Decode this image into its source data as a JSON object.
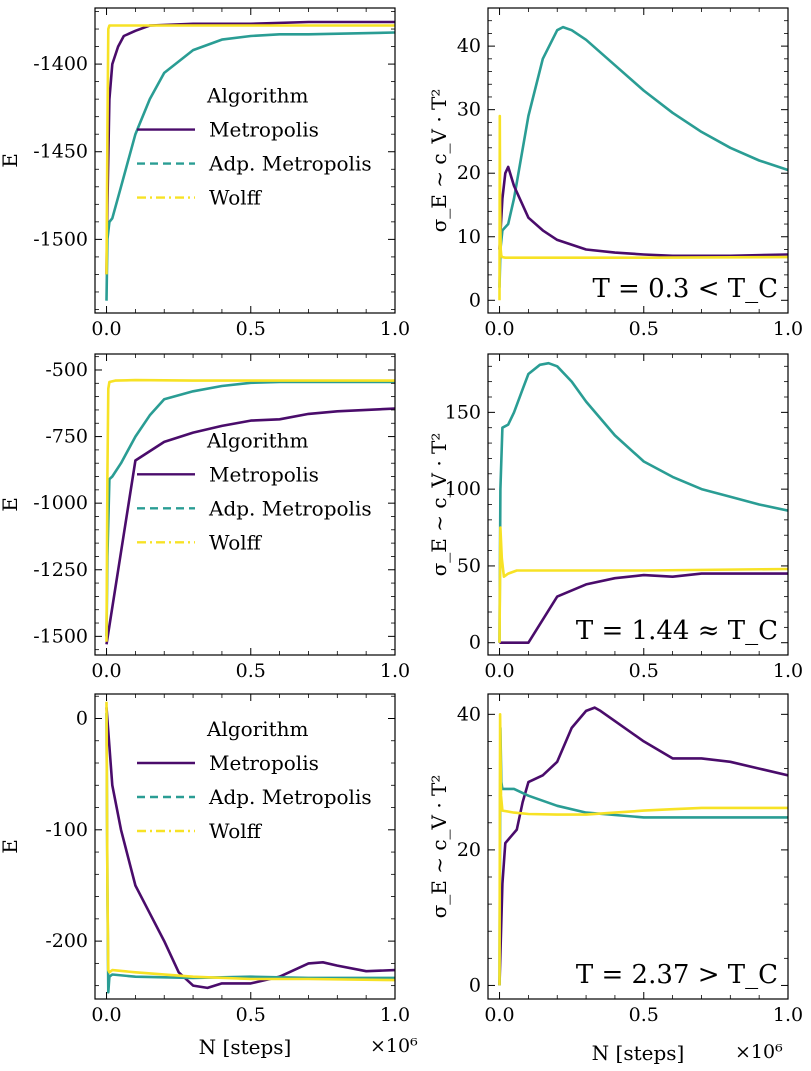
{
  "figure": {
    "xlabel": "N [steps]",
    "x_multiplier": "×10⁶",
    "colors": {
      "metropolis": "#4a0c6b",
      "adp_metropolis": "#2a9d94",
      "wolff": "#f7e225"
    }
  },
  "chart_data": [
    {
      "id": "r1c1",
      "type": "line",
      "title": "",
      "xlabel": "",
      "ylabel": "E",
      "xlim": [
        -0.04,
        1.0
      ],
      "ylim": [
        -1542,
        -1368
      ],
      "xticks": [
        0.0,
        0.5,
        1.0
      ],
      "xtick_labels": [
        "0.0",
        "0.5",
        "1.0"
      ],
      "yticks": [
        -1400,
        -1450,
        -1500
      ],
      "ytick_labels": [
        "-1400",
        "-1450",
        "-1500"
      ],
      "legend": {
        "title": "Algorithm",
        "placement": "center-right",
        "entries": [
          "Metropolis",
          "Adp. Metropolis",
          "Wolff"
        ]
      },
      "series": [
        {
          "name": "Metropolis",
          "style": "solid",
          "color": "#4a0c6b",
          "x": [
            0,
            0.003,
            0.01,
            0.02,
            0.04,
            0.06,
            0.1,
            0.15,
            0.3,
            0.5,
            0.7,
            1.0
          ],
          "y": [
            -1520,
            -1480,
            -1420,
            -1400,
            -1390,
            -1384,
            -1381,
            -1378,
            -1377,
            -1377,
            -1376,
            -1376
          ]
        },
        {
          "name": "Adp. Metropolis",
          "style": "dashed",
          "color": "#2a9d94",
          "x": [
            0,
            0.003,
            0.01,
            0.02,
            0.05,
            0.1,
            0.15,
            0.2,
            0.3,
            0.4,
            0.5,
            0.6,
            0.7,
            1.0
          ],
          "y": [
            -1535,
            -1500,
            -1490,
            -1488,
            -1470,
            -1440,
            -1420,
            -1405,
            -1392,
            -1386,
            -1384,
            -1383,
            -1383,
            -1382
          ]
        },
        {
          "name": "Wolff",
          "style": "dashdot",
          "color": "#f7e225",
          "x": [
            0,
            0.003,
            0.006,
            0.01,
            0.02,
            0.05,
            0.1,
            0.3,
            0.5,
            1.0
          ],
          "y": [
            -1520,
            -1440,
            -1380,
            -1378,
            -1378,
            -1378,
            -1378,
            -1378,
            -1378,
            -1378
          ]
        }
      ]
    },
    {
      "id": "r1c2",
      "type": "line",
      "title": "",
      "xlabel": "",
      "ylabel": "σ_E ~ c_V · T²",
      "xlim": [
        -0.04,
        1.0
      ],
      "ylim": [
        -2,
        46
      ],
      "xticks": [
        0.0,
        0.5,
        1.0
      ],
      "xtick_labels": [
        "0.0",
        "0.5",
        "1.0"
      ],
      "yticks": [
        0,
        10,
        20,
        30,
        40
      ],
      "ytick_labels": [
        "0",
        "10",
        "20",
        "30",
        "40"
      ],
      "annotation": "T = 0.3 < T_C",
      "series": [
        {
          "name": "Adp. Metropolis",
          "style": "solid",
          "color": "#2a9d94",
          "x": [
            0,
            0.003,
            0.01,
            0.03,
            0.05,
            0.1,
            0.15,
            0.2,
            0.22,
            0.25,
            0.3,
            0.4,
            0.5,
            0.6,
            0.7,
            0.8,
            0.9,
            1.0
          ],
          "y": [
            2,
            8,
            11,
            12,
            16,
            29,
            38,
            42.5,
            43,
            42.5,
            41,
            37,
            33,
            29.5,
            26.5,
            24,
            22,
            20.5
          ]
        },
        {
          "name": "Metropolis",
          "style": "solid",
          "color": "#4a0c6b",
          "x": [
            0,
            0.01,
            0.02,
            0.03,
            0.05,
            0.1,
            0.15,
            0.2,
            0.3,
            0.4,
            0.5,
            0.6,
            0.7,
            0.8,
            1.0
          ],
          "y": [
            8,
            16,
            20,
            21,
            18,
            13,
            11,
            9.5,
            8,
            7.5,
            7.2,
            7,
            7,
            7,
            7.2
          ]
        },
        {
          "name": "Wolff",
          "style": "solid",
          "color": "#f7e225",
          "x": [
            0,
            0.001,
            0.002,
            0.004,
            0.006,
            0.01,
            0.02,
            0.05,
            0.2,
            0.5,
            1.0
          ],
          "y": [
            0,
            29,
            15,
            8,
            7,
            6.8,
            6.7,
            6.7,
            6.7,
            6.7,
            6.8
          ]
        }
      ]
    },
    {
      "id": "r2c1",
      "type": "line",
      "title": "",
      "xlabel": "",
      "ylabel": "E",
      "xlim": [
        -0.04,
        1.0
      ],
      "ylim": [
        -1570,
        -440
      ],
      "xticks": [
        0.0,
        0.5,
        1.0
      ],
      "xtick_labels": [
        "0.0",
        "0.5",
        "1.0"
      ],
      "yticks": [
        -500,
        -750,
        -1000,
        -1250,
        -1500
      ],
      "ytick_labels": [
        "-500",
        "-750",
        "-1000",
        "-1250",
        "-1500"
      ],
      "legend": {
        "title": "Algorithm",
        "placement": "center-right",
        "entries": [
          "Metropolis",
          "Adp. Metropolis",
          "Wolff"
        ]
      },
      "series": [
        {
          "name": "Metropolis",
          "style": "solid",
          "color": "#4a0c6b",
          "x": [
            0,
            0.1,
            0.2,
            0.3,
            0.4,
            0.5,
            0.6,
            0.7,
            0.8,
            0.9,
            1.0
          ],
          "y": [
            -1530,
            -840,
            -770,
            -735,
            -710,
            -690,
            -685,
            -665,
            -655,
            -650,
            -645
          ]
        },
        {
          "name": "Adp. Metropolis",
          "style": "solid",
          "color": "#2a9d94",
          "x": [
            0,
            0.003,
            0.01,
            0.02,
            0.05,
            0.1,
            0.15,
            0.2,
            0.3,
            0.4,
            0.5,
            0.6,
            0.7,
            0.8,
            1.0
          ],
          "y": [
            -1500,
            -1200,
            -910,
            -900,
            -850,
            -750,
            -670,
            -610,
            -580,
            -560,
            -548,
            -545,
            -545,
            -545,
            -545
          ]
        },
        {
          "name": "Wolff",
          "style": "solid",
          "color": "#f7e225",
          "x": [
            0,
            0.003,
            0.006,
            0.01,
            0.03,
            0.1,
            0.3,
            0.5,
            1.0
          ],
          "y": [
            -1520,
            -900,
            -570,
            -545,
            -540,
            -538,
            -540,
            -540,
            -540
          ]
        }
      ]
    },
    {
      "id": "r2c2",
      "type": "line",
      "title": "",
      "xlabel": "",
      "ylabel": "σ_E ~ c_V · T²",
      "xlim": [
        -0.04,
        1.0
      ],
      "ylim": [
        -8,
        188
      ],
      "xticks": [
        0.0,
        0.5,
        1.0
      ],
      "xtick_labels": [
        "0.0",
        "0.5",
        "1.0"
      ],
      "yticks": [
        0,
        50,
        100,
        150
      ],
      "ytick_labels": [
        "0",
        "50",
        "100",
        "150"
      ],
      "annotation": "T = 1.44 ≈ T_C",
      "series": [
        {
          "name": "Adp. Metropolis",
          "style": "solid",
          "color": "#2a9d94",
          "x": [
            0,
            0.003,
            0.01,
            0.03,
            0.05,
            0.08,
            0.1,
            0.14,
            0.17,
            0.2,
            0.25,
            0.3,
            0.4,
            0.5,
            0.6,
            0.7,
            0.8,
            0.9,
            1.0
          ],
          "y": [
            0,
            100,
            140,
            142,
            150,
            165,
            175,
            181,
            182,
            180,
            170,
            157,
            135,
            118,
            108,
            100,
            95,
            90,
            86
          ]
        },
        {
          "name": "Metropolis",
          "style": "solid",
          "color": "#4a0c6b",
          "x": [
            0,
            0.1,
            0.2,
            0.3,
            0.4,
            0.5,
            0.6,
            0.7,
            0.8,
            1.0
          ],
          "y": [
            0,
            0,
            30,
            38,
            42,
            44,
            43,
            45,
            45,
            45
          ]
        },
        {
          "name": "Wolff",
          "style": "solid",
          "color": "#f7e225",
          "x": [
            0,
            0.003,
            0.008,
            0.015,
            0.03,
            0.06,
            0.1,
            0.3,
            0.5,
            1.0
          ],
          "y": [
            0,
            75,
            55,
            43,
            45,
            47,
            47,
            47,
            47,
            48
          ]
        }
      ]
    },
    {
      "id": "r3c1",
      "type": "line",
      "title": "",
      "xlabel": "N [steps]",
      "ylabel": "E",
      "xlim": [
        -0.04,
        1.0
      ],
      "ylim": [
        -252,
        22
      ],
      "xticks": [
        0.0,
        0.5,
        1.0
      ],
      "xtick_labels": [
        "0.0",
        "0.5",
        "1.0"
      ],
      "yticks": [
        0,
        -100,
        -200
      ],
      "ytick_labels": [
        "0",
        "-100",
        "-200"
      ],
      "legend": {
        "title": "Algorithm",
        "placement": "top-right",
        "entries": [
          "Metropolis",
          "Adp. Metropolis",
          "Wolff"
        ]
      },
      "series": [
        {
          "name": "Metropolis",
          "style": "solid",
          "color": "#4a0c6b",
          "x": [
            0,
            0.02,
            0.05,
            0.1,
            0.15,
            0.2,
            0.25,
            0.3,
            0.35,
            0.4,
            0.5,
            0.6,
            0.7,
            0.75,
            0.8,
            0.9,
            1.0
          ],
          "y": [
            10,
            -60,
            -100,
            -150,
            -175,
            -200,
            -228,
            -240,
            -242,
            -238,
            -238,
            -232,
            -220,
            -219,
            -222,
            -227,
            -226
          ]
        },
        {
          "name": "Adp. Metropolis",
          "style": "dashed",
          "color": "#2a9d94",
          "x": [
            0,
            0.003,
            0.006,
            0.01,
            0.02,
            0.1,
            0.3,
            0.5,
            0.7,
            1.0
          ],
          "y": [
            5,
            -150,
            -246,
            -232,
            -230,
            -232,
            -233,
            -232,
            -233,
            -233
          ]
        },
        {
          "name": "Wolff",
          "style": "solid",
          "color": "#f7e225",
          "x": [
            0,
            0.003,
            0.006,
            0.01,
            0.02,
            0.1,
            0.3,
            0.5,
            0.7,
            1.0
          ],
          "y": [
            15,
            -150,
            -226,
            -228,
            -226,
            -228,
            -232,
            -234,
            -234,
            -235
          ]
        }
      ]
    },
    {
      "id": "r3c2",
      "type": "line",
      "title": "",
      "xlabel": "N [steps]",
      "ylabel": "σ_E ~ c_V · T²",
      "xlim": [
        -0.04,
        1.0
      ],
      "ylim": [
        -2,
        43
      ],
      "xticks": [
        0.0,
        0.5,
        1.0
      ],
      "xtick_labels": [
        "0.0",
        "0.5",
        "1.0"
      ],
      "yticks": [
        0,
        20,
        40
      ],
      "ytick_labels": [
        "0",
        "20",
        "40"
      ],
      "annotation": "T = 2.37 > T_C",
      "series": [
        {
          "name": "Metropolis",
          "style": "solid",
          "color": "#4a0c6b",
          "x": [
            0,
            0.01,
            0.02,
            0.04,
            0.06,
            0.08,
            0.1,
            0.15,
            0.2,
            0.25,
            0.3,
            0.33,
            0.35,
            0.4,
            0.5,
            0.6,
            0.7,
            0.8,
            0.9,
            1.0
          ],
          "y": [
            0,
            15,
            21,
            22,
            23,
            27,
            30,
            31,
            33,
            38,
            40.5,
            41,
            40.5,
            39,
            36,
            33.5,
            33.5,
            33,
            32,
            31
          ]
        },
        {
          "name": "Adp. Metropolis",
          "style": "solid",
          "color": "#2a9d94",
          "x": [
            0,
            0.003,
            0.006,
            0.01,
            0.05,
            0.1,
            0.2,
            0.3,
            0.5,
            0.7,
            1.0
          ],
          "y": [
            0,
            38,
            30,
            29,
            29,
            28,
            26.5,
            25.5,
            24.8,
            24.8,
            24.8
          ]
        },
        {
          "name": "Wolff",
          "style": "solid",
          "color": "#f7e225",
          "x": [
            0,
            0.002,
            0.005,
            0.01,
            0.05,
            0.1,
            0.2,
            0.3,
            0.4,
            0.5,
            0.6,
            0.7,
            0.8,
            1.0
          ],
          "y": [
            0,
            40,
            28,
            25.8,
            25.5,
            25.3,
            25.2,
            25.2,
            25.5,
            25.8,
            26,
            26.2,
            26.2,
            26.2
          ]
        }
      ]
    }
  ]
}
